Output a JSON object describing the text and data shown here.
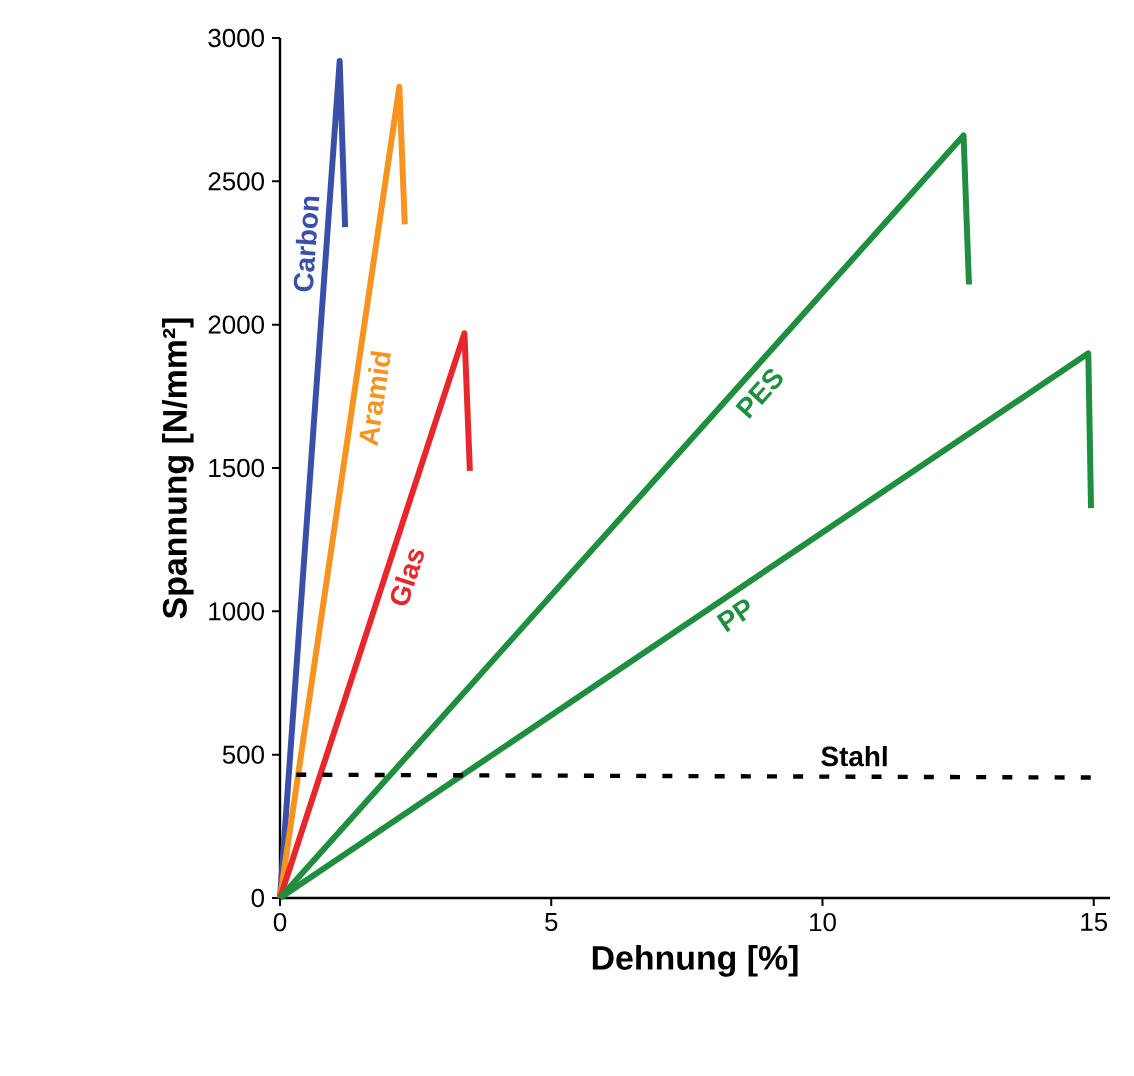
{
  "chart_data": {
    "type": "line",
    "xlabel": "Dehnung [%]",
    "ylabel": "Spannung [N/mm²]",
    "xlim": [
      0,
      15.3
    ],
    "ylim": [
      0,
      3000
    ],
    "xticks": [
      0,
      5,
      10,
      15
    ],
    "yticks": [
      0,
      500,
      1000,
      1500,
      2000,
      2500,
      3000
    ],
    "series": [
      {
        "name": "Carbon",
        "color": "#3a4fa8",
        "x": [
          0,
          1.1,
          1.2
        ],
        "values": [
          0,
          2920,
          2340
        ]
      },
      {
        "name": "Aramid",
        "color": "#f7931e",
        "x": [
          0,
          2.2,
          2.3
        ],
        "values": [
          0,
          2830,
          2350
        ]
      },
      {
        "name": "Glas",
        "color": "#e8262b",
        "x": [
          0,
          3.4,
          3.5
        ],
        "values": [
          0,
          1970,
          1490
        ]
      },
      {
        "name": "PES",
        "color": "#1f8f3f",
        "x": [
          0,
          12.6,
          12.7
        ],
        "values": [
          0,
          2660,
          2140
        ]
      },
      {
        "name": "PP",
        "color": "#1f8f3f",
        "x": [
          0,
          14.9,
          14.95
        ],
        "values": [
          0,
          1900,
          1360
        ]
      },
      {
        "name": "Stahl",
        "color": "#000000",
        "line_style": "dashed",
        "x": [
          0.3,
          15
        ],
        "values": [
          430,
          420
        ]
      }
    ]
  }
}
